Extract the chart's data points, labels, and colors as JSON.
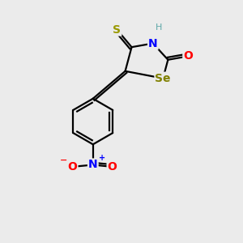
{
  "background_color": "#ebebeb",
  "atom_colors": {
    "S": "#999900",
    "N": "#0000ff",
    "Se": "#808000",
    "O": "#ff0000",
    "H": "#5fa8a8",
    "C": "#000000"
  },
  "font_size": 10,
  "font_size_small": 8,
  "line_width": 1.6
}
